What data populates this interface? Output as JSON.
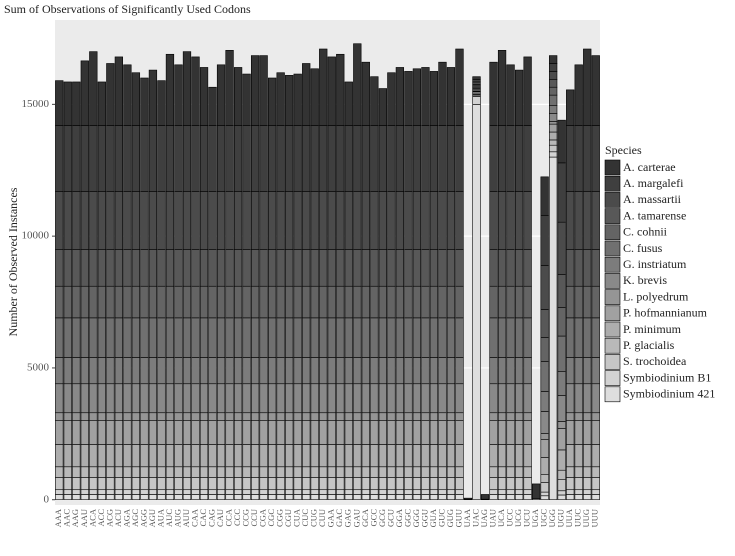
{
  "chart_data": {
    "type": "stacked-bar",
    "title": "Sum of Observations of Significantly Used Codons",
    "y_label": "Number of Observed Instances",
    "legend_title": "Species",
    "categories": [
      "AAA",
      "AAC",
      "AAG",
      "AAU",
      "ACA",
      "ACC",
      "ACG",
      "ACU",
      "AGA",
      "AGC",
      "AGG",
      "AGU",
      "AUA",
      "AUC",
      "AUG",
      "AUU",
      "CAA",
      "CAC",
      "CAG",
      "CAU",
      "CCA",
      "CCC",
      "CCG",
      "CCU",
      "CGA",
      "CGC",
      "CGG",
      "CGU",
      "CUA",
      "CUC",
      "CUG",
      "CUU",
      "GAA",
      "GAC",
      "GAG",
      "GAU",
      "GCA",
      "GCC",
      "GCG",
      "GCU",
      "GGA",
      "GGC",
      "GGG",
      "GGU",
      "GUA",
      "GUC",
      "GUG",
      "GUU",
      "UAA",
      "UAC",
      "UAG",
      "UAU",
      "UCA",
      "UCC",
      "UCG",
      "UCU",
      "UGA",
      "UGC",
      "UGG",
      "UGU",
      "UUA",
      "UUC",
      "UUG",
      "UUU"
    ],
    "ylim": [
      -200,
      18200
    ],
    "yticks": [
      0,
      5000,
      10000,
      15000
    ],
    "grid": true,
    "legend_position": "right",
    "series": [
      {
        "name": "A. carterae",
        "color": "#333333",
        "values": [
          1700,
          1650,
          1650,
          2450,
          2800,
          1650,
          2350,
          2600,
          2300,
          2000,
          1800,
          2100,
          1700,
          2700,
          2300,
          2800,
          2600,
          2200,
          1450,
          2300,
          2850,
          2200,
          1950,
          2650,
          2650,
          1800,
          2000,
          1900,
          1950,
          2350,
          2150,
          2900,
          2600,
          2700,
          1650,
          3100,
          2400,
          1850,
          1400,
          2000,
          2200,
          2050,
          2150,
          2200,
          2050,
          2400,
          2200,
          2900,
          50,
          100,
          180,
          2400,
          2850,
          2300,
          2100,
          2600,
          560,
          1460,
          300,
          1620,
          1350,
          2300,
          2900,
          2650
        ]
      },
      {
        "name": "A. margalefi",
        "color": "#3f3f3f",
        "values": [
          2500,
          2500,
          2500,
          2500,
          2500,
          2500,
          2500,
          2500,
          2500,
          2500,
          2500,
          2500,
          2500,
          2500,
          2500,
          2500,
          2500,
          2500,
          2500,
          2500,
          2500,
          2500,
          2500,
          2500,
          2500,
          2500,
          2500,
          2500,
          2500,
          2500,
          2500,
          2500,
          2500,
          2500,
          2500,
          2500,
          2500,
          2500,
          2500,
          2500,
          2500,
          2500,
          2500,
          2500,
          2500,
          2500,
          2500,
          2500,
          0,
          100,
          0,
          2500,
          2500,
          2500,
          2500,
          2500,
          0,
          1900,
          300,
          2250,
          2500,
          2500,
          2500,
          2500
        ]
      },
      {
        "name": "A. massartii",
        "color": "#4b4b4b",
        "values": [
          2200,
          2200,
          2200,
          2200,
          2200,
          2200,
          2200,
          2200,
          2200,
          2200,
          2200,
          2200,
          2200,
          2200,
          2200,
          2200,
          2200,
          2200,
          2200,
          2200,
          2200,
          2200,
          2200,
          2200,
          2200,
          2200,
          2200,
          2200,
          2200,
          2200,
          2200,
          2200,
          2200,
          2200,
          2200,
          2200,
          2200,
          2200,
          2200,
          2200,
          2200,
          2200,
          2200,
          2200,
          2200,
          2200,
          2200,
          2200,
          0,
          100,
          0,
          2200,
          2200,
          2200,
          2200,
          2200,
          0,
          1670,
          300,
          1980,
          2200,
          2200,
          2200,
          2200
        ]
      },
      {
        "name": "A. tamarense",
        "color": "#585858",
        "values": [
          1400,
          1400,
          1400,
          1400,
          1400,
          1400,
          1400,
          1400,
          1400,
          1400,
          1400,
          1400,
          1400,
          1400,
          1400,
          1400,
          1400,
          1400,
          1400,
          1400,
          1400,
          1400,
          1400,
          1400,
          1400,
          1400,
          1400,
          1400,
          1400,
          1400,
          1400,
          1400,
          1400,
          1400,
          1400,
          1400,
          1400,
          1400,
          1400,
          1400,
          1400,
          1400,
          1400,
          1400,
          1400,
          1400,
          1400,
          1400,
          0,
          50,
          0,
          1400,
          1400,
          1400,
          1400,
          1400,
          0,
          1060,
          300,
          1260,
          1400,
          1400,
          1400,
          1400
        ]
      },
      {
        "name": "C. cohnii",
        "color": "#646464",
        "values": [
          1200,
          1200,
          1200,
          1200,
          1200,
          1200,
          1200,
          1200,
          1200,
          1200,
          1200,
          1200,
          1200,
          1200,
          1200,
          1200,
          1200,
          1200,
          1200,
          1200,
          1200,
          1200,
          1200,
          1200,
          1200,
          1200,
          1200,
          1200,
          1200,
          1200,
          1200,
          1200,
          1200,
          1200,
          1200,
          1200,
          1200,
          1200,
          1200,
          1200,
          1200,
          1200,
          1200,
          1200,
          1200,
          1200,
          1200,
          1200,
          0,
          50,
          0,
          1200,
          1200,
          1200,
          1200,
          1200,
          0,
          910,
          300,
          1080,
          1200,
          1200,
          1200,
          1200
        ]
      },
      {
        "name": "C. fusus",
        "color": "#707070",
        "values": [
          1500,
          1500,
          1500,
          1500,
          1500,
          1500,
          1500,
          1500,
          1500,
          1500,
          1500,
          1500,
          1500,
          1500,
          1500,
          1500,
          1500,
          1500,
          1500,
          1500,
          1500,
          1500,
          1500,
          1500,
          1500,
          1500,
          1500,
          1500,
          1500,
          1500,
          1500,
          1500,
          1500,
          1500,
          1500,
          1500,
          1500,
          1500,
          1500,
          1500,
          1500,
          1500,
          1500,
          1500,
          1500,
          1500,
          1500,
          1500,
          0,
          50,
          0,
          1500,
          1500,
          1500,
          1500,
          1500,
          0,
          1140,
          400,
          1350,
          1500,
          1500,
          1500,
          1500
        ]
      },
      {
        "name": "G. instriatum",
        "color": "#7c7c7c",
        "values": [
          1000,
          1000,
          1000,
          1000,
          1000,
          1000,
          1000,
          1000,
          1000,
          1000,
          1000,
          1000,
          1000,
          1000,
          1000,
          1000,
          1000,
          1000,
          1000,
          1000,
          1000,
          1000,
          1000,
          1000,
          1000,
          1000,
          1000,
          1000,
          1000,
          1000,
          1000,
          1000,
          1000,
          1000,
          1000,
          1000,
          1000,
          1000,
          1000,
          1000,
          1000,
          1000,
          1000,
          1000,
          1000,
          1000,
          1000,
          1000,
          0,
          50,
          0,
          1000,
          1000,
          1000,
          1000,
          1000,
          0,
          760,
          300,
          900,
          1000,
          1000,
          1000,
          1000
        ]
      },
      {
        "name": "K. brevis",
        "color": "#898989",
        "values": [
          1100,
          1100,
          1100,
          1100,
          1100,
          1100,
          1100,
          1100,
          1100,
          1100,
          1100,
          1100,
          1100,
          1100,
          1100,
          1100,
          1100,
          1100,
          1100,
          1100,
          1100,
          1100,
          1100,
          1100,
          1100,
          1100,
          1100,
          1100,
          1100,
          1100,
          1100,
          1100,
          1100,
          1100,
          1100,
          1100,
          1100,
          1100,
          1100,
          1100,
          1100,
          1100,
          1100,
          1100,
          1100,
          1100,
          1100,
          1100,
          0,
          50,
          0,
          1100,
          1100,
          1100,
          1100,
          1100,
          0,
          840,
          300,
          990,
          1100,
          1100,
          1100,
          1100
        ]
      },
      {
        "name": "L. polyedrum",
        "color": "#959595",
        "values": [
          300,
          300,
          300,
          300,
          300,
          300,
          300,
          300,
          300,
          300,
          300,
          300,
          300,
          300,
          300,
          300,
          300,
          300,
          300,
          300,
          300,
          300,
          300,
          300,
          300,
          300,
          300,
          300,
          300,
          300,
          300,
          300,
          300,
          300,
          300,
          300,
          300,
          300,
          300,
          300,
          300,
          300,
          300,
          300,
          300,
          300,
          300,
          300,
          0,
          20,
          0,
          300,
          300,
          300,
          300,
          300,
          0,
          230,
          100,
          270,
          300,
          300,
          300,
          300
        ]
      },
      {
        "name": "P. hofmannianum",
        "color": "#a1a1a1",
        "values": [
          900,
          900,
          900,
          900,
          900,
          900,
          900,
          900,
          900,
          900,
          900,
          900,
          900,
          900,
          900,
          900,
          900,
          900,
          900,
          900,
          900,
          900,
          900,
          900,
          900,
          900,
          900,
          900,
          900,
          900,
          900,
          900,
          900,
          900,
          900,
          900,
          900,
          900,
          900,
          900,
          900,
          900,
          900,
          900,
          900,
          900,
          900,
          900,
          0,
          50,
          0,
          900,
          900,
          900,
          900,
          900,
          0,
          680,
          300,
          810,
          900,
          900,
          900,
          900
        ]
      },
      {
        "name": "P. minimum",
        "color": "#adadad",
        "values": [
          850,
          850,
          850,
          850,
          850,
          850,
          850,
          850,
          850,
          850,
          850,
          850,
          850,
          850,
          850,
          850,
          850,
          850,
          850,
          850,
          850,
          850,
          850,
          850,
          850,
          850,
          850,
          850,
          850,
          850,
          850,
          850,
          850,
          850,
          850,
          850,
          850,
          850,
          850,
          850,
          850,
          850,
          850,
          850,
          850,
          850,
          850,
          850,
          0,
          50,
          0,
          850,
          850,
          850,
          850,
          850,
          0,
          650,
          300,
          770,
          850,
          850,
          850,
          850
        ]
      },
      {
        "name": "P. glacialis",
        "color": "#b9b9b9",
        "values": [
          400,
          400,
          400,
          400,
          400,
          400,
          400,
          400,
          400,
          400,
          400,
          400,
          400,
          400,
          400,
          400,
          400,
          400,
          400,
          400,
          400,
          400,
          400,
          400,
          400,
          400,
          400,
          400,
          400,
          400,
          400,
          400,
          400,
          400,
          400,
          400,
          400,
          400,
          400,
          400,
          400,
          400,
          400,
          400,
          400,
          400,
          400,
          400,
          0,
          30,
          0,
          400,
          400,
          400,
          400,
          400,
          0,
          300,
          200,
          360,
          400,
          400,
          400,
          400
        ]
      },
      {
        "name": "S. trochoidea",
        "color": "#c6c6c6",
        "values": [
          470,
          470,
          470,
          470,
          470,
          470,
          470,
          470,
          470,
          470,
          470,
          470,
          470,
          470,
          470,
          470,
          470,
          470,
          470,
          470,
          470,
          470,
          470,
          470,
          470,
          470,
          470,
          470,
          470,
          470,
          470,
          470,
          470,
          470,
          470,
          470,
          470,
          470,
          470,
          470,
          470,
          470,
          470,
          470,
          470,
          470,
          470,
          470,
          0,
          50,
          0,
          470,
          470,
          470,
          470,
          470,
          0,
          360,
          250,
          420,
          470,
          470,
          470,
          470
        ]
      },
      {
        "name": "Symbiodinium B1",
        "color": "#d2d2d2",
        "values": [
          180,
          180,
          180,
          180,
          180,
          180,
          180,
          180,
          180,
          180,
          180,
          180,
          180,
          180,
          180,
          180,
          180,
          180,
          180,
          180,
          180,
          180,
          180,
          180,
          180,
          180,
          180,
          180,
          180,
          180,
          180,
          180,
          180,
          180,
          180,
          180,
          180,
          180,
          180,
          180,
          180,
          180,
          180,
          180,
          180,
          180,
          180,
          180,
          0,
          300,
          0,
          180,
          180,
          180,
          180,
          180,
          0,
          140,
          200,
          160,
          180,
          180,
          180,
          180
        ]
      },
      {
        "name": "Symbiodinium 421",
        "color": "#dedede",
        "values": [
          200,
          200,
          200,
          200,
          200,
          200,
          200,
          200,
          200,
          200,
          200,
          200,
          200,
          200,
          200,
          200,
          200,
          200,
          200,
          200,
          200,
          200,
          200,
          200,
          200,
          200,
          200,
          200,
          200,
          200,
          200,
          200,
          200,
          200,
          200,
          200,
          200,
          200,
          200,
          200,
          200,
          200,
          200,
          200,
          200,
          200,
          200,
          200,
          10,
          15000,
          20,
          200,
          200,
          200,
          200,
          200,
          40,
          150,
          13000,
          180,
          200,
          200,
          200,
          200
        ]
      }
    ]
  }
}
